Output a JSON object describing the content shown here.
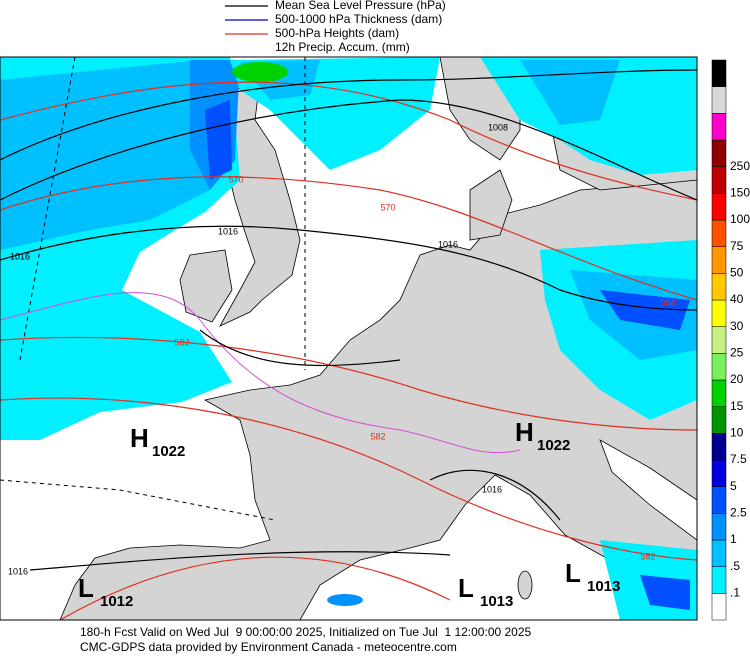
{
  "legend": [
    {
      "label": "Mean Sea Level Pressure (hPa)",
      "color": "#000000"
    },
    {
      "label": "500-1000 hPa Thickness (dam)",
      "color": "#0000cc"
    },
    {
      "label": "500-hPa Heights (dam)",
      "color": "#e03020"
    },
    {
      "label": "12h Precip. Accum. (mm)"
    }
  ],
  "colorbar": {
    "colors": [
      "#ffffff",
      "#00f0ff",
      "#00c0ff",
      "#0090ff",
      "#0050ff",
      "#0000e0",
      "#000090",
      "#009600",
      "#00d200",
      "#7af05a",
      "#c8f080",
      "#ffff00",
      "#ffc800",
      "#ff9600",
      "#ff5000",
      "#ff0000",
      "#c00000",
      "#900000",
      "#ff00c8",
      "#d8d8d8",
      "#000000"
    ],
    "labels": [
      ".1",
      ".5",
      "1",
      "2.5",
      "5",
      "7.5",
      "10",
      "15",
      "20",
      "25",
      "30",
      "40",
      "50",
      "75",
      "100",
      "150",
      "250"
    ]
  },
  "centers": [
    {
      "letter": "H",
      "value": "1022"
    },
    {
      "letter": "H",
      "value": "1022"
    },
    {
      "letter": "L",
      "value": "1012"
    },
    {
      "letter": "L",
      "value": "1013"
    },
    {
      "letter": "L",
      "value": "1013"
    }
  ],
  "contour_labels": [
    "1016",
    "1016",
    "1016",
    "1016",
    "1016",
    "1008",
    "570",
    "570",
    "582",
    "582",
    "582",
    "558"
  ],
  "footer": [
    "180-h Fcst Valid on Wed Jul  9 00:00:00 2025, Initialized on Tue Jul  1 12:00:00 2025",
    "CMC-GDPS data provided by Environment Canada - meteocentre.com"
  ]
}
